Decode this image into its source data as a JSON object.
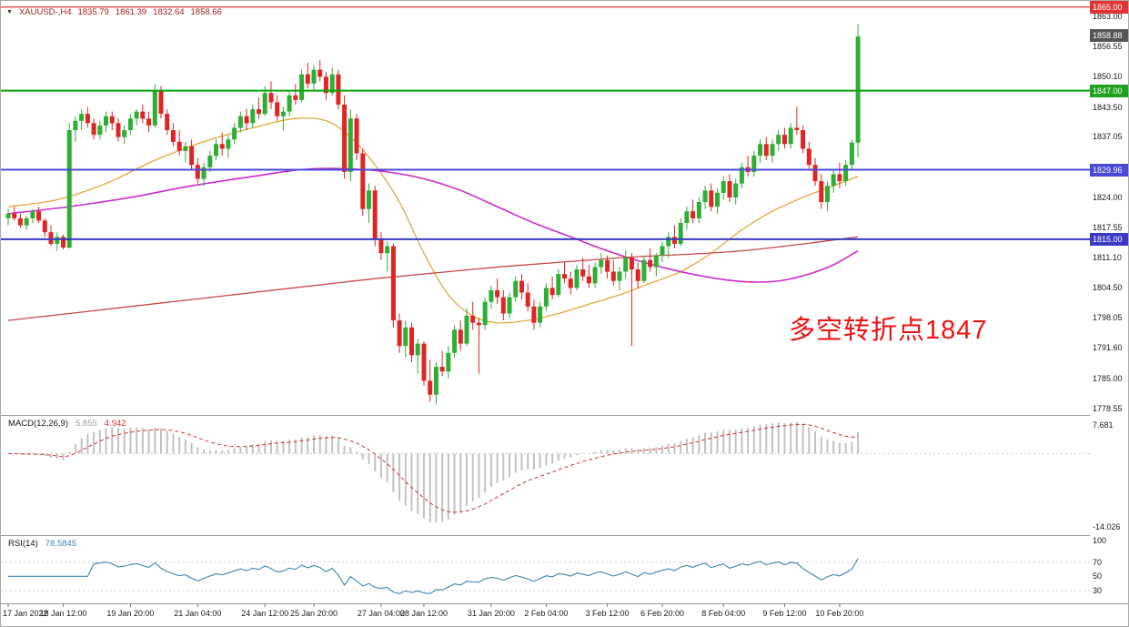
{
  "header": {
    "marker": "▼",
    "symbol_timeframe": "XAUUSD-,H4",
    "open": "1835.79",
    "high": "1861.39",
    "low": "1832.64",
    "close": "1858.66"
  },
  "chart_data": {
    "type": "candlestick",
    "symbol": "XAUUSD",
    "timeframe": "H4",
    "colors": {
      "up": "#2fae36",
      "down": "#e02424",
      "background": "#ffffff"
    },
    "price_axis": {
      "y_min": 1778.55,
      "y_max": 1863.0,
      "labels": [
        "1863.00",
        "1856.55",
        "1850.10",
        "1843.50",
        "1837.05",
        "1824.00",
        "1817.55",
        "1811.10",
        "1804.50",
        "1798.05",
        "1791.60",
        "1785.00",
        "1778.55"
      ],
      "badges": [
        {
          "name": "price-badge-resistance",
          "text": "1865.00",
          "price": 1865.0,
          "color": "#e23434"
        },
        {
          "name": "price-badge-current",
          "text": "1858.88",
          "price": 1858.88,
          "color": "#555555"
        },
        {
          "name": "price-badge-pivot",
          "text": "1847.00",
          "price": 1847.0,
          "color": "#1ea11e"
        },
        {
          "name": "price-badge-support1",
          "text": "1829.96",
          "price": 1829.96,
          "color": "#4a4ad8"
        },
        {
          "name": "price-badge-support2",
          "text": "1815.00",
          "price": 1815.0,
          "color": "#3a3ac4"
        }
      ]
    },
    "horizontal_lines": [
      {
        "price": 1865.0,
        "color": "#e23434",
        "width": 1.2
      },
      {
        "price": 1847.0,
        "color": "#07a407",
        "width": 2
      },
      {
        "price": 1829.96,
        "color": "#4a4ad8",
        "width": 2
      },
      {
        "price": 1815.0,
        "color": "#3a3ac4",
        "width": 2
      }
    ],
    "x_axis": {
      "labels": [
        "17 Jan 2022",
        "18 Jan 12:00",
        "19 Jan 20:00",
        "21 Jan 04:00",
        "24 Jan 12:00",
        "25 Jan 20:00",
        "27 Jan 04:00",
        "28 Jan 12:00",
        "31 Jan 20:00",
        "2 Feb 04:00",
        "3 Feb 12:00",
        "6 Feb 20:00",
        "8 Feb 04:00",
        "9 Feb 12:00",
        "10 Feb 20:00"
      ],
      "bar_index": [
        0,
        9,
        20,
        31,
        42,
        50,
        61,
        68,
        79,
        88,
        98,
        107,
        117,
        127,
        136
      ]
    },
    "candles": [
      [
        1819.5,
        1821.5,
        1818.0,
        1820.5
      ],
      [
        1820.5,
        1822.0,
        1819.0,
        1819.5
      ],
      [
        1819.5,
        1820.5,
        1817.5,
        1818.0
      ],
      [
        1818.0,
        1820.0,
        1817.0,
        1819.5
      ],
      [
        1819.5,
        1821.5,
        1818.5,
        1821.0
      ],
      [
        1821.0,
        1822.0,
        1818.5,
        1819.0
      ],
      [
        1819.0,
        1819.5,
        1815.5,
        1816.5
      ],
      [
        1816.5,
        1818.0,
        1813.5,
        1814.0
      ],
      [
        1814.0,
        1816.5,
        1812.5,
        1815.5
      ],
      [
        1815.5,
        1816.0,
        1812.8,
        1813.2
      ],
      [
        1813.2,
        1840.0,
        1813.0,
        1838.5
      ],
      [
        1838.5,
        1841.5,
        1836.0,
        1840.5
      ],
      [
        1840.5,
        1843.0,
        1838.5,
        1842.0
      ],
      [
        1842.0,
        1843.5,
        1839.0,
        1840.0
      ],
      [
        1840.0,
        1841.0,
        1836.5,
        1837.5
      ],
      [
        1837.5,
        1840.5,
        1836.5,
        1839.5
      ],
      [
        1839.5,
        1842.5,
        1838.0,
        1841.5
      ],
      [
        1841.5,
        1842.5,
        1838.5,
        1840.0
      ],
      [
        1840.0,
        1841.0,
        1836.0,
        1837.0
      ],
      [
        1837.0,
        1839.5,
        1835.5,
        1838.5
      ],
      [
        1838.5,
        1842.0,
        1837.5,
        1841.0
      ],
      [
        1841.0,
        1843.0,
        1839.5,
        1842.5
      ],
      [
        1842.5,
        1844.0,
        1840.0,
        1841.0
      ],
      [
        1841.0,
        1842.5,
        1838.0,
        1839.5
      ],
      [
        1839.5,
        1848.5,
        1839.0,
        1847.0
      ],
      [
        1847.0,
        1848.0,
        1841.0,
        1842.0
      ],
      [
        1842.0,
        1843.0,
        1837.5,
        1838.5
      ],
      [
        1838.5,
        1840.0,
        1835.0,
        1836.0
      ],
      [
        1836.0,
        1838.5,
        1833.0,
        1834.0
      ],
      [
        1834.0,
        1836.0,
        1831.5,
        1835.0
      ],
      [
        1835.0,
        1836.5,
        1830.0,
        1831.0
      ],
      [
        1831.0,
        1832.5,
        1827.0,
        1828.0
      ],
      [
        1828.0,
        1831.5,
        1826.5,
        1830.5
      ],
      [
        1830.5,
        1834.0,
        1829.5,
        1833.0
      ],
      [
        1833.0,
        1836.5,
        1832.0,
        1835.5
      ],
      [
        1835.5,
        1838.0,
        1833.0,
        1834.5
      ],
      [
        1834.5,
        1837.5,
        1832.5,
        1836.5
      ],
      [
        1836.5,
        1840.0,
        1835.5,
        1839.0
      ],
      [
        1839.0,
        1842.5,
        1838.0,
        1841.5
      ],
      [
        1841.5,
        1843.0,
        1838.5,
        1840.0
      ],
      [
        1840.0,
        1844.0,
        1839.0,
        1843.0
      ],
      [
        1843.0,
        1845.5,
        1841.0,
        1842.0
      ],
      [
        1842.0,
        1848.0,
        1841.5,
        1846.5
      ],
      [
        1846.5,
        1849.0,
        1843.0,
        1844.5
      ],
      [
        1844.5,
        1846.0,
        1840.5,
        1841.5
      ],
      [
        1841.5,
        1843.5,
        1838.5,
        1842.5
      ],
      [
        1842.5,
        1847.0,
        1841.5,
        1846.0
      ],
      [
        1846.0,
        1848.5,
        1844.0,
        1845.0
      ],
      [
        1845.0,
        1851.5,
        1844.5,
        1850.5
      ],
      [
        1850.5,
        1853.0,
        1847.5,
        1848.5
      ],
      [
        1848.5,
        1852.5,
        1847.0,
        1851.5
      ],
      [
        1851.5,
        1853.5,
        1849.0,
        1850.0
      ],
      [
        1850.0,
        1851.0,
        1845.0,
        1846.5
      ],
      [
        1846.5,
        1852.0,
        1846.0,
        1850.5
      ],
      [
        1850.5,
        1851.5,
        1843.0,
        1844.0
      ],
      [
        1844.0,
        1846.0,
        1828.0,
        1829.5
      ],
      [
        1829.5,
        1843.0,
        1827.5,
        1841.0
      ],
      [
        1841.0,
        1842.0,
        1832.0,
        1833.5
      ],
      [
        1833.5,
        1834.5,
        1820.0,
        1821.5
      ],
      [
        1821.5,
        1827.0,
        1818.5,
        1825.5
      ],
      [
        1825.5,
        1826.5,
        1813.5,
        1815.0
      ],
      [
        1815.0,
        1816.5,
        1810.5,
        1812.0
      ],
      [
        1812.0,
        1814.5,
        1808.0,
        1813.5
      ],
      [
        1813.5,
        1814.0,
        1796.0,
        1797.5
      ],
      [
        1797.5,
        1799.0,
        1790.5,
        1792.0
      ],
      [
        1792.0,
        1797.5,
        1789.5,
        1796.0
      ],
      [
        1796.0,
        1797.0,
        1788.5,
        1790.0
      ],
      [
        1790.0,
        1793.5,
        1786.0,
        1792.5
      ],
      [
        1792.5,
        1793.0,
        1783.5,
        1784.5
      ],
      [
        1784.5,
        1789.0,
        1780.0,
        1781.5
      ],
      [
        1781.5,
        1788.5,
        1779.5,
        1787.5
      ],
      [
        1787.5,
        1791.0,
        1785.5,
        1786.5
      ],
      [
        1786.5,
        1792.0,
        1785.0,
        1790.5
      ],
      [
        1790.5,
        1796.5,
        1789.5,
        1795.5
      ],
      [
        1795.5,
        1797.5,
        1791.0,
        1792.5
      ],
      [
        1792.5,
        1800.0,
        1792.0,
        1798.5
      ],
      [
        1798.5,
        1801.5,
        1795.5,
        1797.0
      ],
      [
        1797.0,
        1798.0,
        1786.0,
        1796.5
      ],
      [
        1796.5,
        1802.5,
        1795.5,
        1801.5
      ],
      [
        1801.5,
        1805.0,
        1800.0,
        1804.0
      ],
      [
        1804.0,
        1806.5,
        1801.0,
        1802.5
      ],
      [
        1802.5,
        1804.0,
        1797.5,
        1799.0
      ],
      [
        1799.0,
        1803.5,
        1798.0,
        1802.5
      ],
      [
        1802.5,
        1807.0,
        1801.5,
        1806.0
      ],
      [
        1806.0,
        1807.5,
        1802.0,
        1803.5
      ],
      [
        1803.5,
        1805.5,
        1799.5,
        1800.5
      ],
      [
        1800.5,
        1802.0,
        1795.5,
        1797.0
      ],
      [
        1797.0,
        1801.5,
        1796.0,
        1800.5
      ],
      [
        1800.5,
        1805.5,
        1799.5,
        1804.5
      ],
      [
        1804.5,
        1807.0,
        1802.0,
        1803.0
      ],
      [
        1803.0,
        1808.5,
        1802.5,
        1807.5
      ],
      [
        1807.5,
        1810.0,
        1805.5,
        1806.5
      ],
      [
        1806.5,
        1808.0,
        1803.0,
        1804.5
      ],
      [
        1804.5,
        1809.5,
        1804.0,
        1808.5
      ],
      [
        1808.5,
        1811.0,
        1806.0,
        1807.0
      ],
      [
        1807.0,
        1809.5,
        1804.5,
        1805.5
      ],
      [
        1805.5,
        1810.0,
        1804.5,
        1809.0
      ],
      [
        1809.0,
        1812.0,
        1807.5,
        1810.5
      ],
      [
        1810.5,
        1811.5,
        1806.5,
        1808.0
      ],
      [
        1808.0,
        1810.5,
        1805.0,
        1806.0
      ],
      [
        1806.0,
        1809.0,
        1804.0,
        1808.0
      ],
      [
        1808.0,
        1812.5,
        1806.5,
        1811.0
      ],
      [
        1811.0,
        1812.0,
        1792.0,
        1808.5
      ],
      [
        1808.5,
        1810.0,
        1804.5,
        1806.0
      ],
      [
        1806.0,
        1811.5,
        1805.5,
        1810.5
      ],
      [
        1810.5,
        1813.0,
        1808.0,
        1809.0
      ],
      [
        1809.0,
        1812.0,
        1807.0,
        1811.5
      ],
      [
        1811.5,
        1814.5,
        1810.0,
        1813.5
      ],
      [
        1813.5,
        1816.5,
        1811.0,
        1815.5
      ],
      [
        1815.5,
        1818.0,
        1813.0,
        1814.0
      ],
      [
        1814.0,
        1819.5,
        1813.5,
        1818.5
      ],
      [
        1818.5,
        1822.0,
        1817.0,
        1821.0
      ],
      [
        1821.0,
        1823.5,
        1818.5,
        1819.5
      ],
      [
        1819.5,
        1824.0,
        1818.5,
        1823.0
      ],
      [
        1823.0,
        1826.5,
        1821.5,
        1825.5
      ],
      [
        1825.5,
        1827.0,
        1821.0,
        1822.0
      ],
      [
        1822.0,
        1826.0,
        1820.5,
        1825.0
      ],
      [
        1825.0,
        1828.5,
        1823.5,
        1827.5
      ],
      [
        1827.5,
        1829.0,
        1823.0,
        1824.0
      ],
      [
        1824.0,
        1828.0,
        1822.5,
        1827.0
      ],
      [
        1827.0,
        1831.5,
        1826.0,
        1830.5
      ],
      [
        1830.5,
        1833.0,
        1828.5,
        1829.5
      ],
      [
        1829.5,
        1834.0,
        1828.5,
        1833.0
      ],
      [
        1833.0,
        1836.5,
        1831.5,
        1835.5
      ],
      [
        1835.5,
        1837.0,
        1832.0,
        1833.0
      ],
      [
        1833.0,
        1836.5,
        1831.5,
        1835.5
      ],
      [
        1835.5,
        1838.5,
        1834.0,
        1837.5
      ],
      [
        1837.5,
        1839.0,
        1834.5,
        1835.5
      ],
      [
        1835.5,
        1840.0,
        1834.5,
        1839.0
      ],
      [
        1839.0,
        1843.5,
        1837.5,
        1838.5
      ],
      [
        1838.5,
        1839.5,
        1833.5,
        1834.5
      ],
      [
        1834.5,
        1836.0,
        1830.0,
        1831.0
      ],
      [
        1831.0,
        1832.5,
        1826.5,
        1827.5
      ],
      [
        1827.5,
        1829.0,
        1821.5,
        1823.0
      ],
      [
        1823.0,
        1827.5,
        1821.0,
        1826.5
      ],
      [
        1826.5,
        1830.0,
        1825.0,
        1829.0
      ],
      [
        1829.0,
        1831.5,
        1826.0,
        1827.5
      ],
      [
        1827.5,
        1832.0,
        1826.5,
        1831.0
      ],
      [
        1831.0,
        1836.5,
        1830.0,
        1835.8
      ],
      [
        1835.79,
        1861.39,
        1832.64,
        1858.66
      ]
    ],
    "moving_averages": [
      {
        "name": "ma-fast-orange-line",
        "color": "#e2a93e",
        "width": 1.3,
        "points": [
          [
            0,
            1822
          ],
          [
            8,
            1823.5
          ],
          [
            16,
            1827
          ],
          [
            24,
            1832
          ],
          [
            32,
            1836
          ],
          [
            40,
            1839
          ],
          [
            47,
            1841
          ],
          [
            52,
            1840.5
          ],
          [
            56,
            1837
          ],
          [
            60,
            1831
          ],
          [
            64,
            1823
          ],
          [
            68,
            1812
          ],
          [
            72,
            1803
          ],
          [
            76,
            1798.5
          ],
          [
            80,
            1797
          ],
          [
            85,
            1797.5
          ],
          [
            90,
            1799
          ],
          [
            95,
            1801
          ],
          [
            100,
            1803
          ],
          [
            105,
            1805.5
          ],
          [
            110,
            1808
          ],
          [
            115,
            1812
          ],
          [
            120,
            1817
          ],
          [
            125,
            1821
          ],
          [
            130,
            1824
          ],
          [
            135,
            1826.5
          ],
          [
            139,
            1828.5
          ]
        ]
      },
      {
        "name": "ma-mid-magenta-line",
        "color": "#cc2acc",
        "width": 1.6,
        "points": [
          [
            0,
            1820.5
          ],
          [
            10,
            1822
          ],
          [
            20,
            1824
          ],
          [
            30,
            1826.5
          ],
          [
            40,
            1828.5
          ],
          [
            48,
            1830
          ],
          [
            55,
            1830.2
          ],
          [
            62,
            1829.5
          ],
          [
            68,
            1828
          ],
          [
            74,
            1825.5
          ],
          [
            80,
            1822
          ],
          [
            86,
            1818.5
          ],
          [
            92,
            1815.5
          ],
          [
            98,
            1812.5
          ],
          [
            104,
            1810
          ],
          [
            110,
            1808
          ],
          [
            116,
            1806.5
          ],
          [
            121,
            1805.8
          ],
          [
            126,
            1806
          ],
          [
            131,
            1807.5
          ],
          [
            135,
            1809.5
          ],
          [
            139,
            1812.5
          ]
        ]
      },
      {
        "name": "ma-slow-red-line",
        "color": "#c94848",
        "width": 1.3,
        "points": [
          [
            0,
            1797.5
          ],
          [
            20,
            1800.5
          ],
          [
            40,
            1803.5
          ],
          [
            60,
            1806.5
          ],
          [
            80,
            1809
          ],
          [
            100,
            1811
          ],
          [
            120,
            1812.5
          ],
          [
            139,
            1815.5
          ]
        ]
      }
    ],
    "macd": {
      "label": "MACD(12,26,9)",
      "value_main": "5.855",
      "value_signal": "4.942",
      "params": [
        12,
        26,
        9
      ],
      "axis_labels": [
        "7.681",
        "-14.026"
      ],
      "histogram_color": "#c2c2c2",
      "signal_color": "#cc3434"
    },
    "rsi": {
      "label": "RSI(14)",
      "value": "78.5845",
      "period": 14,
      "axis_values": [
        100,
        70,
        50,
        30
      ],
      "color": "#3d85ad"
    },
    "annotation": {
      "text": "多空转折点1847",
      "color": "#ee1212"
    }
  }
}
